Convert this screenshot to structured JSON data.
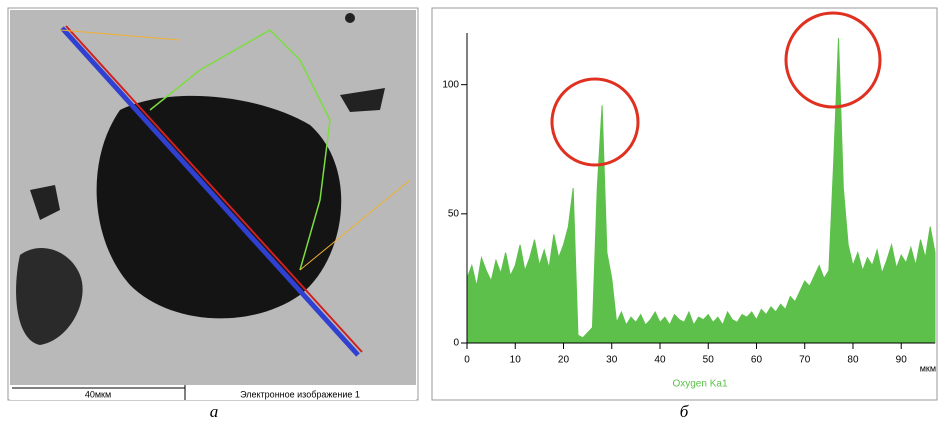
{
  "figure": {
    "left": {
      "scale_bar": "40мкм",
      "image_label": "Электронное изображение 1",
      "caption": "а"
    },
    "right": {
      "caption": "б"
    }
  },
  "chart_data": {
    "type": "area",
    "x_label": "мкм",
    "xlim": [
      0,
      97
    ],
    "xticks": [
      0,
      10,
      20,
      30,
      40,
      50,
      60,
      70,
      80,
      90
    ],
    "ylim": [
      0,
      120
    ],
    "yticks": [
      0,
      50,
      100
    ],
    "x": [
      0,
      1,
      2,
      3,
      4,
      5,
      6,
      7,
      8,
      9,
      10,
      11,
      12,
      13,
      14,
      15,
      16,
      17,
      18,
      19,
      20,
      21,
      22,
      23,
      24,
      25,
      26,
      27,
      28,
      29,
      30,
      31,
      32,
      33,
      34,
      35,
      36,
      37,
      38,
      39,
      40,
      41,
      42,
      43,
      44,
      45,
      46,
      47,
      48,
      49,
      50,
      51,
      52,
      53,
      54,
      55,
      56,
      57,
      58,
      59,
      60,
      61,
      62,
      63,
      64,
      65,
      66,
      67,
      68,
      69,
      70,
      71,
      72,
      73,
      74,
      75,
      76,
      77,
      78,
      79,
      80,
      81,
      82,
      83,
      84,
      85,
      86,
      87,
      88,
      89,
      90,
      91,
      92,
      93,
      94,
      95,
      96,
      97
    ],
    "series": [
      {
        "name": "Oxygen Ka1",
        "color": "#5cc04a",
        "values": [
          25,
          30,
          22,
          33,
          28,
          24,
          32,
          27,
          35,
          26,
          30,
          38,
          28,
          33,
          40,
          30,
          36,
          29,
          42,
          33,
          38,
          45,
          60,
          3,
          2,
          4,
          6,
          60,
          92,
          35,
          25,
          8,
          12,
          7,
          10,
          8,
          11,
          7,
          9,
          12,
          8,
          10,
          7,
          11,
          9,
          8,
          12,
          7,
          10,
          9,
          11,
          8,
          10,
          7,
          12,
          9,
          8,
          11,
          10,
          12,
          9,
          13,
          11,
          14,
          12,
          15,
          13,
          18,
          16,
          20,
          24,
          22,
          26,
          30,
          25,
          28,
          70,
          118,
          60,
          38,
          30,
          35,
          28,
          33,
          30,
          36,
          27,
          32,
          38,
          29,
          34,
          31,
          37,
          30,
          40,
          33,
          45,
          35
        ]
      }
    ]
  }
}
